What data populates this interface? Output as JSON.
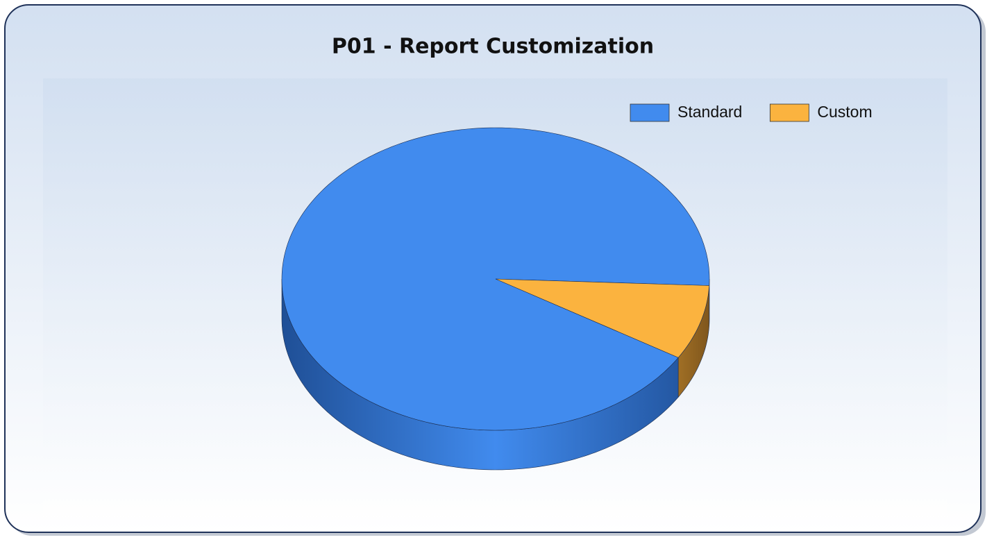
{
  "chart_data": {
    "type": "pie",
    "title": "P01 - Report Customization",
    "categories": [
      "Standard",
      "Custom"
    ],
    "values": [
      92,
      8
    ],
    "colors": [
      "#418bee",
      "#fbb33f"
    ],
    "legend": "top-right"
  }
}
